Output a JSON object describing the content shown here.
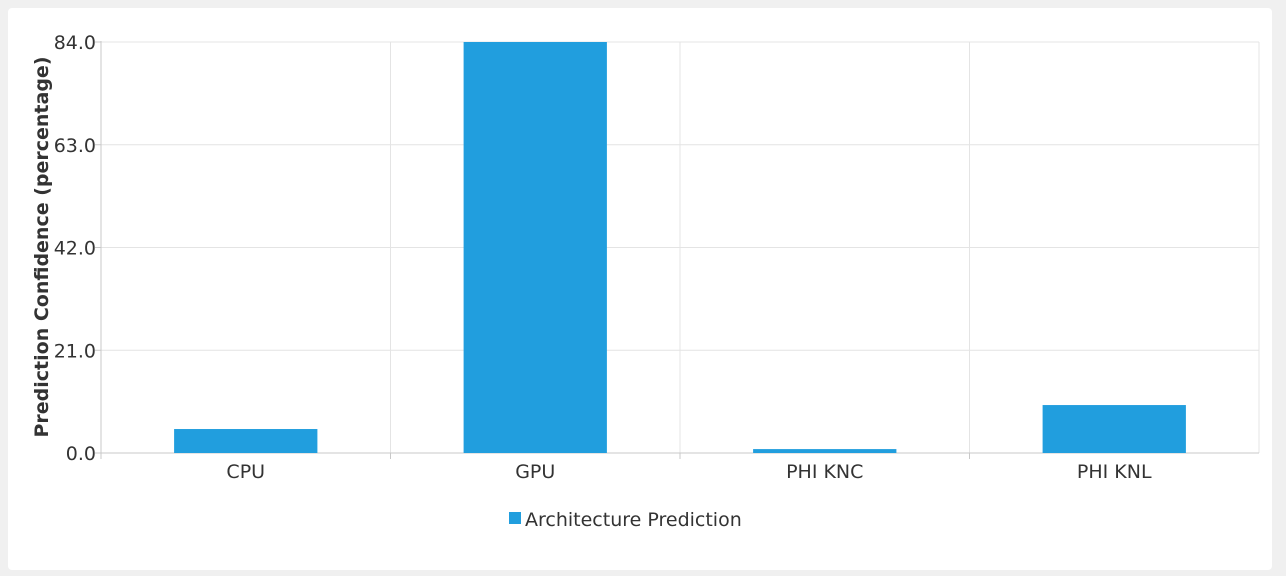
{
  "chart_data": {
    "type": "bar",
    "categories": [
      "CPU",
      "GPU",
      "PHI KNC",
      "PHI KNL"
    ],
    "series": [
      {
        "name": "Architecture Prediction",
        "values": [
          4.9,
          84.0,
          0.8,
          9.8
        ],
        "color": "#219ede"
      }
    ],
    "ylabel": "Prediction Confidence (percentage)",
    "xlabel": "",
    "ylim": [
      0,
      84
    ],
    "yticks": [
      "0.0",
      "21.0",
      "42.0",
      "63.0",
      "84.0"
    ],
    "grid": true,
    "legend_position": "bottom-center"
  }
}
